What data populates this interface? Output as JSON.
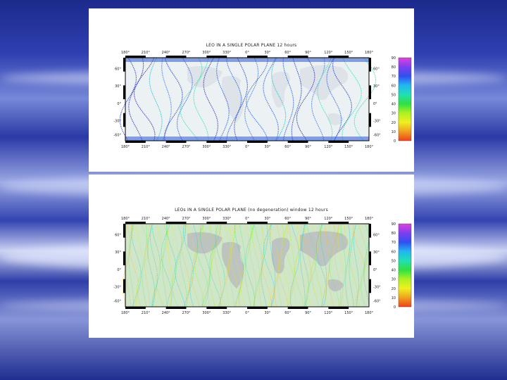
{
  "slide": {
    "background_color": "#2a3aa8"
  },
  "panels": [
    {
      "title": "LEO IN A SINGLE POLAR PLANE 12 hours",
      "lon_labels": [
        "180°",
        "210°",
        "240°",
        "270°",
        "300°",
        "330°",
        "0°",
        "30°",
        "60°",
        "90°",
        "120°",
        "150°",
        "180°"
      ],
      "lat_labels_left": [
        "60°",
        "30°",
        "0°",
        "-30°",
        "-60°"
      ],
      "lat_labels_right": [
        "60°",
        "30°",
        "0°",
        "-30°",
        "-60°"
      ],
      "colorbar_labels": [
        "90",
        "80",
        "70",
        "60",
        "50",
        "40",
        "30",
        "20",
        "10",
        "0"
      ],
      "track_palette": [
        "#1e3fc8",
        "#2a5fe0",
        "#3b7be8",
        "#2d2fb6",
        "#27c6d0",
        "#3ce0b0"
      ],
      "track_count": 26
    },
    {
      "title": "LEOs IN A SINGLE POLAR PLANE (no degeneration) window 12 hours",
      "lon_labels": [
        "180°",
        "210°",
        "240°",
        "270°",
        "300°",
        "330°",
        "0°",
        "30°",
        "60°",
        "90°",
        "120°",
        "150°",
        "180°"
      ],
      "lat_labels_left": [
        "60°",
        "30°",
        "0°",
        "-30°",
        "-60°"
      ],
      "lat_labels_right": [
        "60°",
        "30°",
        "0°",
        "-30°",
        "-60°"
      ],
      "colorbar_labels": [
        "90",
        "80",
        "70",
        "60",
        "50",
        "40",
        "30",
        "20",
        "10",
        "0"
      ],
      "track_palette": [
        "#b6e63c",
        "#e6e63c",
        "#6ee67a",
        "#34d6a8",
        "#30c8d8",
        "#f2c24a"
      ],
      "track_count": 90
    }
  ]
}
